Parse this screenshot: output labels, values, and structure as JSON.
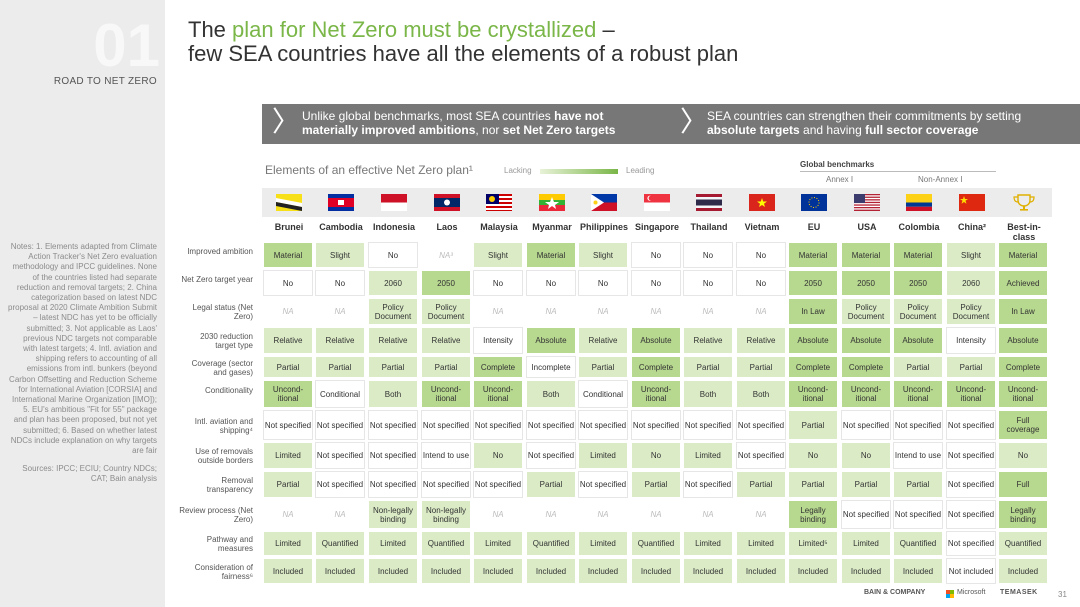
{
  "section": {
    "number": "01",
    "label": "ROAD TO NET ZERO"
  },
  "title": {
    "pre": "The ",
    "highlight": "plan for Net Zero must be crystallized",
    "post": " –",
    "line2": "few SEA countries have all the elements of a robust plan"
  },
  "banner": {
    "left": {
      "t1": "Unlike global benchmarks, most SEA countries ",
      "b1": "have not",
      "t2": "materially improved ambitions",
      "t3": ", nor ",
      "b2": "set Net Zero targets"
    },
    "right": {
      "t1": "SEA countries can strengthen their commitments by setting",
      "b1": "absolute targets",
      "t2": " and having ",
      "b2": "full sector coverage"
    }
  },
  "table": {
    "title": "Elements of an effective Net Zero plan¹",
    "legend_low": "Lacking",
    "legend_high": "Leading",
    "benchmarks": "Global benchmarks",
    "annex1": "Annex I",
    "nonannex1": "Non-Annex I",
    "columns": [
      "Brunei",
      "Cambodia",
      "Indonesia",
      "Laos",
      "Malaysia",
      "Myanmar",
      "Philippines",
      "Singapore",
      "Thailand",
      "Vietnam",
      "EU",
      "USA",
      "Colombia",
      "China²",
      "Best-in-class"
    ],
    "flag_icons": [
      "brunei-flag-icon",
      "cambodia-flag-icon",
      "indonesia-flag-icon",
      "laos-flag-icon",
      "malaysia-flag-icon",
      "myanmar-flag-icon",
      "philippines-flag-icon",
      "singapore-flag-icon",
      "thailand-flag-icon",
      "vietnam-flag-icon",
      "eu-flag-icon",
      "usa-flag-icon",
      "colombia-flag-icon",
      "china-flag-icon",
      "trophy-icon"
    ],
    "colors": {
      "lacking": "#ffffff",
      "low": "#f0f6e7",
      "mid": "#dbebc6",
      "high": "#b7d88f",
      "top": "#8cc063"
    },
    "rows": [
      {
        "label": "Improved ambition",
        "cells": [
          [
            "Material",
            "h"
          ],
          [
            "Slight",
            "m"
          ],
          [
            "No",
            "w"
          ],
          [
            "NA³",
            "na"
          ],
          [
            "Slight",
            "m"
          ],
          [
            "Material",
            "h"
          ],
          [
            "Slight",
            "m"
          ],
          [
            "No",
            "w"
          ],
          [
            "No",
            "w"
          ],
          [
            "No",
            "w"
          ],
          [
            "Material",
            "h"
          ],
          [
            "Material",
            "h"
          ],
          [
            "Material",
            "h"
          ],
          [
            "Slight",
            "m"
          ],
          [
            "Material",
            "h"
          ]
        ]
      },
      {
        "label": "Net Zero target year",
        "cells": [
          [
            "No",
            "w"
          ],
          [
            "No",
            "w"
          ],
          [
            "2060",
            "m"
          ],
          [
            "2050",
            "h"
          ],
          [
            "No",
            "w"
          ],
          [
            "No",
            "w"
          ],
          [
            "No",
            "w"
          ],
          [
            "No",
            "w"
          ],
          [
            "No",
            "w"
          ],
          [
            "No",
            "w"
          ],
          [
            "2050",
            "h"
          ],
          [
            "2050",
            "h"
          ],
          [
            "2050",
            "h"
          ],
          [
            "2060",
            "m"
          ],
          [
            "Achieved",
            "h"
          ]
        ]
      },
      {
        "label": "Legal status (Net Zero)",
        "cells": [
          [
            "NA",
            "na"
          ],
          [
            "NA",
            "na"
          ],
          [
            "Policy Document",
            "m"
          ],
          [
            "Policy Document",
            "m"
          ],
          [
            "NA",
            "na"
          ],
          [
            "NA",
            "na"
          ],
          [
            "NA",
            "na"
          ],
          [
            "NA",
            "na"
          ],
          [
            "NA",
            "na"
          ],
          [
            "NA",
            "na"
          ],
          [
            "In Law",
            "h"
          ],
          [
            "Policy Document",
            "m"
          ],
          [
            "Policy Document",
            "m"
          ],
          [
            "Policy Document",
            "m"
          ],
          [
            "In Law",
            "h"
          ]
        ]
      },
      {
        "label": "2030 reduction target type",
        "cells": [
          [
            "Relative",
            "m"
          ],
          [
            "Relative",
            "m"
          ],
          [
            "Relative",
            "m"
          ],
          [
            "Relative",
            "m"
          ],
          [
            "Intensity",
            "w"
          ],
          [
            "Absolute",
            "h"
          ],
          [
            "Relative",
            "m"
          ],
          [
            "Absolute",
            "h"
          ],
          [
            "Relative",
            "m"
          ],
          [
            "Relative",
            "m"
          ],
          [
            "Absolute",
            "h"
          ],
          [
            "Absolute",
            "h"
          ],
          [
            "Absolute",
            "h"
          ],
          [
            "Intensity",
            "w"
          ],
          [
            "Absolute",
            "h"
          ]
        ]
      },
      {
        "label": "Coverage (sector and gases)",
        "cells": [
          [
            "Partial",
            "m"
          ],
          [
            "Partial",
            "m"
          ],
          [
            "Partial",
            "m"
          ],
          [
            "Partial",
            "m"
          ],
          [
            "Complete",
            "h"
          ],
          [
            "Incomplete",
            "w"
          ],
          [
            "Partial",
            "m"
          ],
          [
            "Complete",
            "h"
          ],
          [
            "Partial",
            "m"
          ],
          [
            "Partial",
            "m"
          ],
          [
            "Complete",
            "h"
          ],
          [
            "Complete",
            "h"
          ],
          [
            "Partial",
            "m"
          ],
          [
            "Partial",
            "m"
          ],
          [
            "Complete",
            "h"
          ]
        ]
      },
      {
        "label": "Conditionality",
        "cells": [
          [
            "Uncond-itional",
            "h"
          ],
          [
            "Conditional",
            "w"
          ],
          [
            "Both",
            "m"
          ],
          [
            "Uncond-itional",
            "h"
          ],
          [
            "Uncond-itional",
            "h"
          ],
          [
            "Both",
            "m"
          ],
          [
            "Conditional",
            "w"
          ],
          [
            "Uncond-itional",
            "h"
          ],
          [
            "Both",
            "m"
          ],
          [
            "Both",
            "m"
          ],
          [
            "Uncond-itional",
            "h"
          ],
          [
            "Uncond-itional",
            "h"
          ],
          [
            "Uncond-itional",
            "h"
          ],
          [
            "Uncond-itional",
            "h"
          ],
          [
            "Uncond-itional",
            "h"
          ]
        ]
      },
      {
        "label": "Intl. aviation and shipping⁴",
        "cells": [
          [
            "Not specified",
            "w"
          ],
          [
            "Not specified",
            "w"
          ],
          [
            "Not specified",
            "w"
          ],
          [
            "Not specified",
            "w"
          ],
          [
            "Not specified",
            "w"
          ],
          [
            "Not specified",
            "w"
          ],
          [
            "Not specified",
            "w"
          ],
          [
            "Not specified",
            "w"
          ],
          [
            "Not specified",
            "w"
          ],
          [
            "Not specified",
            "w"
          ],
          [
            "Partial",
            "m"
          ],
          [
            "Not specified",
            "w"
          ],
          [
            "Not specified",
            "w"
          ],
          [
            "Not specified",
            "w"
          ],
          [
            "Full coverage",
            "h"
          ]
        ]
      },
      {
        "label": "Use of removals outside borders",
        "cells": [
          [
            "Limited",
            "m"
          ],
          [
            "Not specified",
            "w"
          ],
          [
            "Not specified",
            "w"
          ],
          [
            "Intend to use",
            "w"
          ],
          [
            "No",
            "h"
          ],
          [
            "Not specified",
            "w"
          ],
          [
            "Limited",
            "m"
          ],
          [
            "No",
            "h"
          ],
          [
            "Limited",
            "m"
          ],
          [
            "Not specified",
            "w"
          ],
          [
            "No",
            "h"
          ],
          [
            "No",
            "h"
          ],
          [
            "Intend to use",
            "w"
          ],
          [
            "Not specified",
            "w"
          ],
          [
            "No",
            "h"
          ]
        ]
      },
      {
        "label": "Removal transparency",
        "cells": [
          [
            "Partial",
            "m"
          ],
          [
            "Not specified",
            "w"
          ],
          [
            "Not specified",
            "w"
          ],
          [
            "Not specified",
            "w"
          ],
          [
            "Not specified",
            "w"
          ],
          [
            "Partial",
            "m"
          ],
          [
            "Not specified",
            "w"
          ],
          [
            "Partial",
            "m"
          ],
          [
            "Not specified",
            "w"
          ],
          [
            "Partial",
            "m"
          ],
          [
            "Partial",
            "m"
          ],
          [
            "Partial",
            "m"
          ],
          [
            "Partial",
            "m"
          ],
          [
            "Not specified",
            "w"
          ],
          [
            "Full",
            "h"
          ]
        ]
      },
      {
        "label": "Review process (Net Zero)",
        "cells": [
          [
            "NA",
            "na"
          ],
          [
            "NA",
            "na"
          ],
          [
            "Non-legally binding",
            "m"
          ],
          [
            "Non-legally binding",
            "m"
          ],
          [
            "NA",
            "na"
          ],
          [
            "NA",
            "na"
          ],
          [
            "NA",
            "na"
          ],
          [
            "NA",
            "na"
          ],
          [
            "NA",
            "na"
          ],
          [
            "NA",
            "na"
          ],
          [
            "Legally binding",
            "h"
          ],
          [
            "Not specified",
            "w"
          ],
          [
            "Not specified",
            "w"
          ],
          [
            "Not specified",
            "w"
          ],
          [
            "Legally binding",
            "h"
          ]
        ]
      },
      {
        "label": "Pathway and measures",
        "cells": [
          [
            "Limited",
            "m"
          ],
          [
            "Quantified",
            "h"
          ],
          [
            "Limited",
            "m"
          ],
          [
            "Quantified",
            "h"
          ],
          [
            "Limited",
            "m"
          ],
          [
            "Quantified",
            "h"
          ],
          [
            "Limited",
            "m"
          ],
          [
            "Quantified",
            "h"
          ],
          [
            "Limited",
            "m"
          ],
          [
            "Limited",
            "m"
          ],
          [
            "Limited⁵",
            "m"
          ],
          [
            "Limited",
            "m"
          ],
          [
            "Quantified",
            "h"
          ],
          [
            "Not specified",
            "w"
          ],
          [
            "Quantified",
            "h"
          ]
        ]
      },
      {
        "label": "Consideration of fairness⁶",
        "cells": [
          [
            "Included",
            "h"
          ],
          [
            "Included",
            "h"
          ],
          [
            "Included",
            "h"
          ],
          [
            "Included",
            "h"
          ],
          [
            "Included",
            "h"
          ],
          [
            "Included",
            "h"
          ],
          [
            "Included",
            "h"
          ],
          [
            "Included",
            "h"
          ],
          [
            "Included",
            "h"
          ],
          [
            "Included",
            "h"
          ],
          [
            "Included",
            "h"
          ],
          [
            "Included",
            "h"
          ],
          [
            "Included",
            "h"
          ],
          [
            "Not included",
            "w"
          ],
          [
            "Included",
            "h"
          ]
        ]
      }
    ]
  },
  "notes": [
    "Notes: 1. Elements adapted from Climate Action Tracker's Net Zero evaluation methodology and IPCC guidelines. None of the countries listed had separate reduction and removal targets; 2. China categorization based on latest NDC proposal at 2020 Climate Ambition Submit – latest NDC has yet to be officially submitted; 3. Not applicable as Laos' previous NDC targets not comparable with latest targets; 4. Intl. aviation and shipping refers to accounting of all emissions from intl. bunkers (beyond Carbon Offsetting and Reduction Scheme for International Aviation [CORSIA] and International Marine Organization [IMO]); 5. EU's ambitious \"Fit for 55\" package and plan has been proposed, but not yet submitted; 6. Based on whether latest NDCs include explanation on why targets are fair",
    "Sources: IPCC; ECIU; Country NDCs; CAT; Bain analysis"
  ],
  "footer": {
    "bain": "BAIN & COMPANY",
    "microsoft": "Microsoft",
    "temasek": "TEMASEK",
    "page": "31"
  }
}
